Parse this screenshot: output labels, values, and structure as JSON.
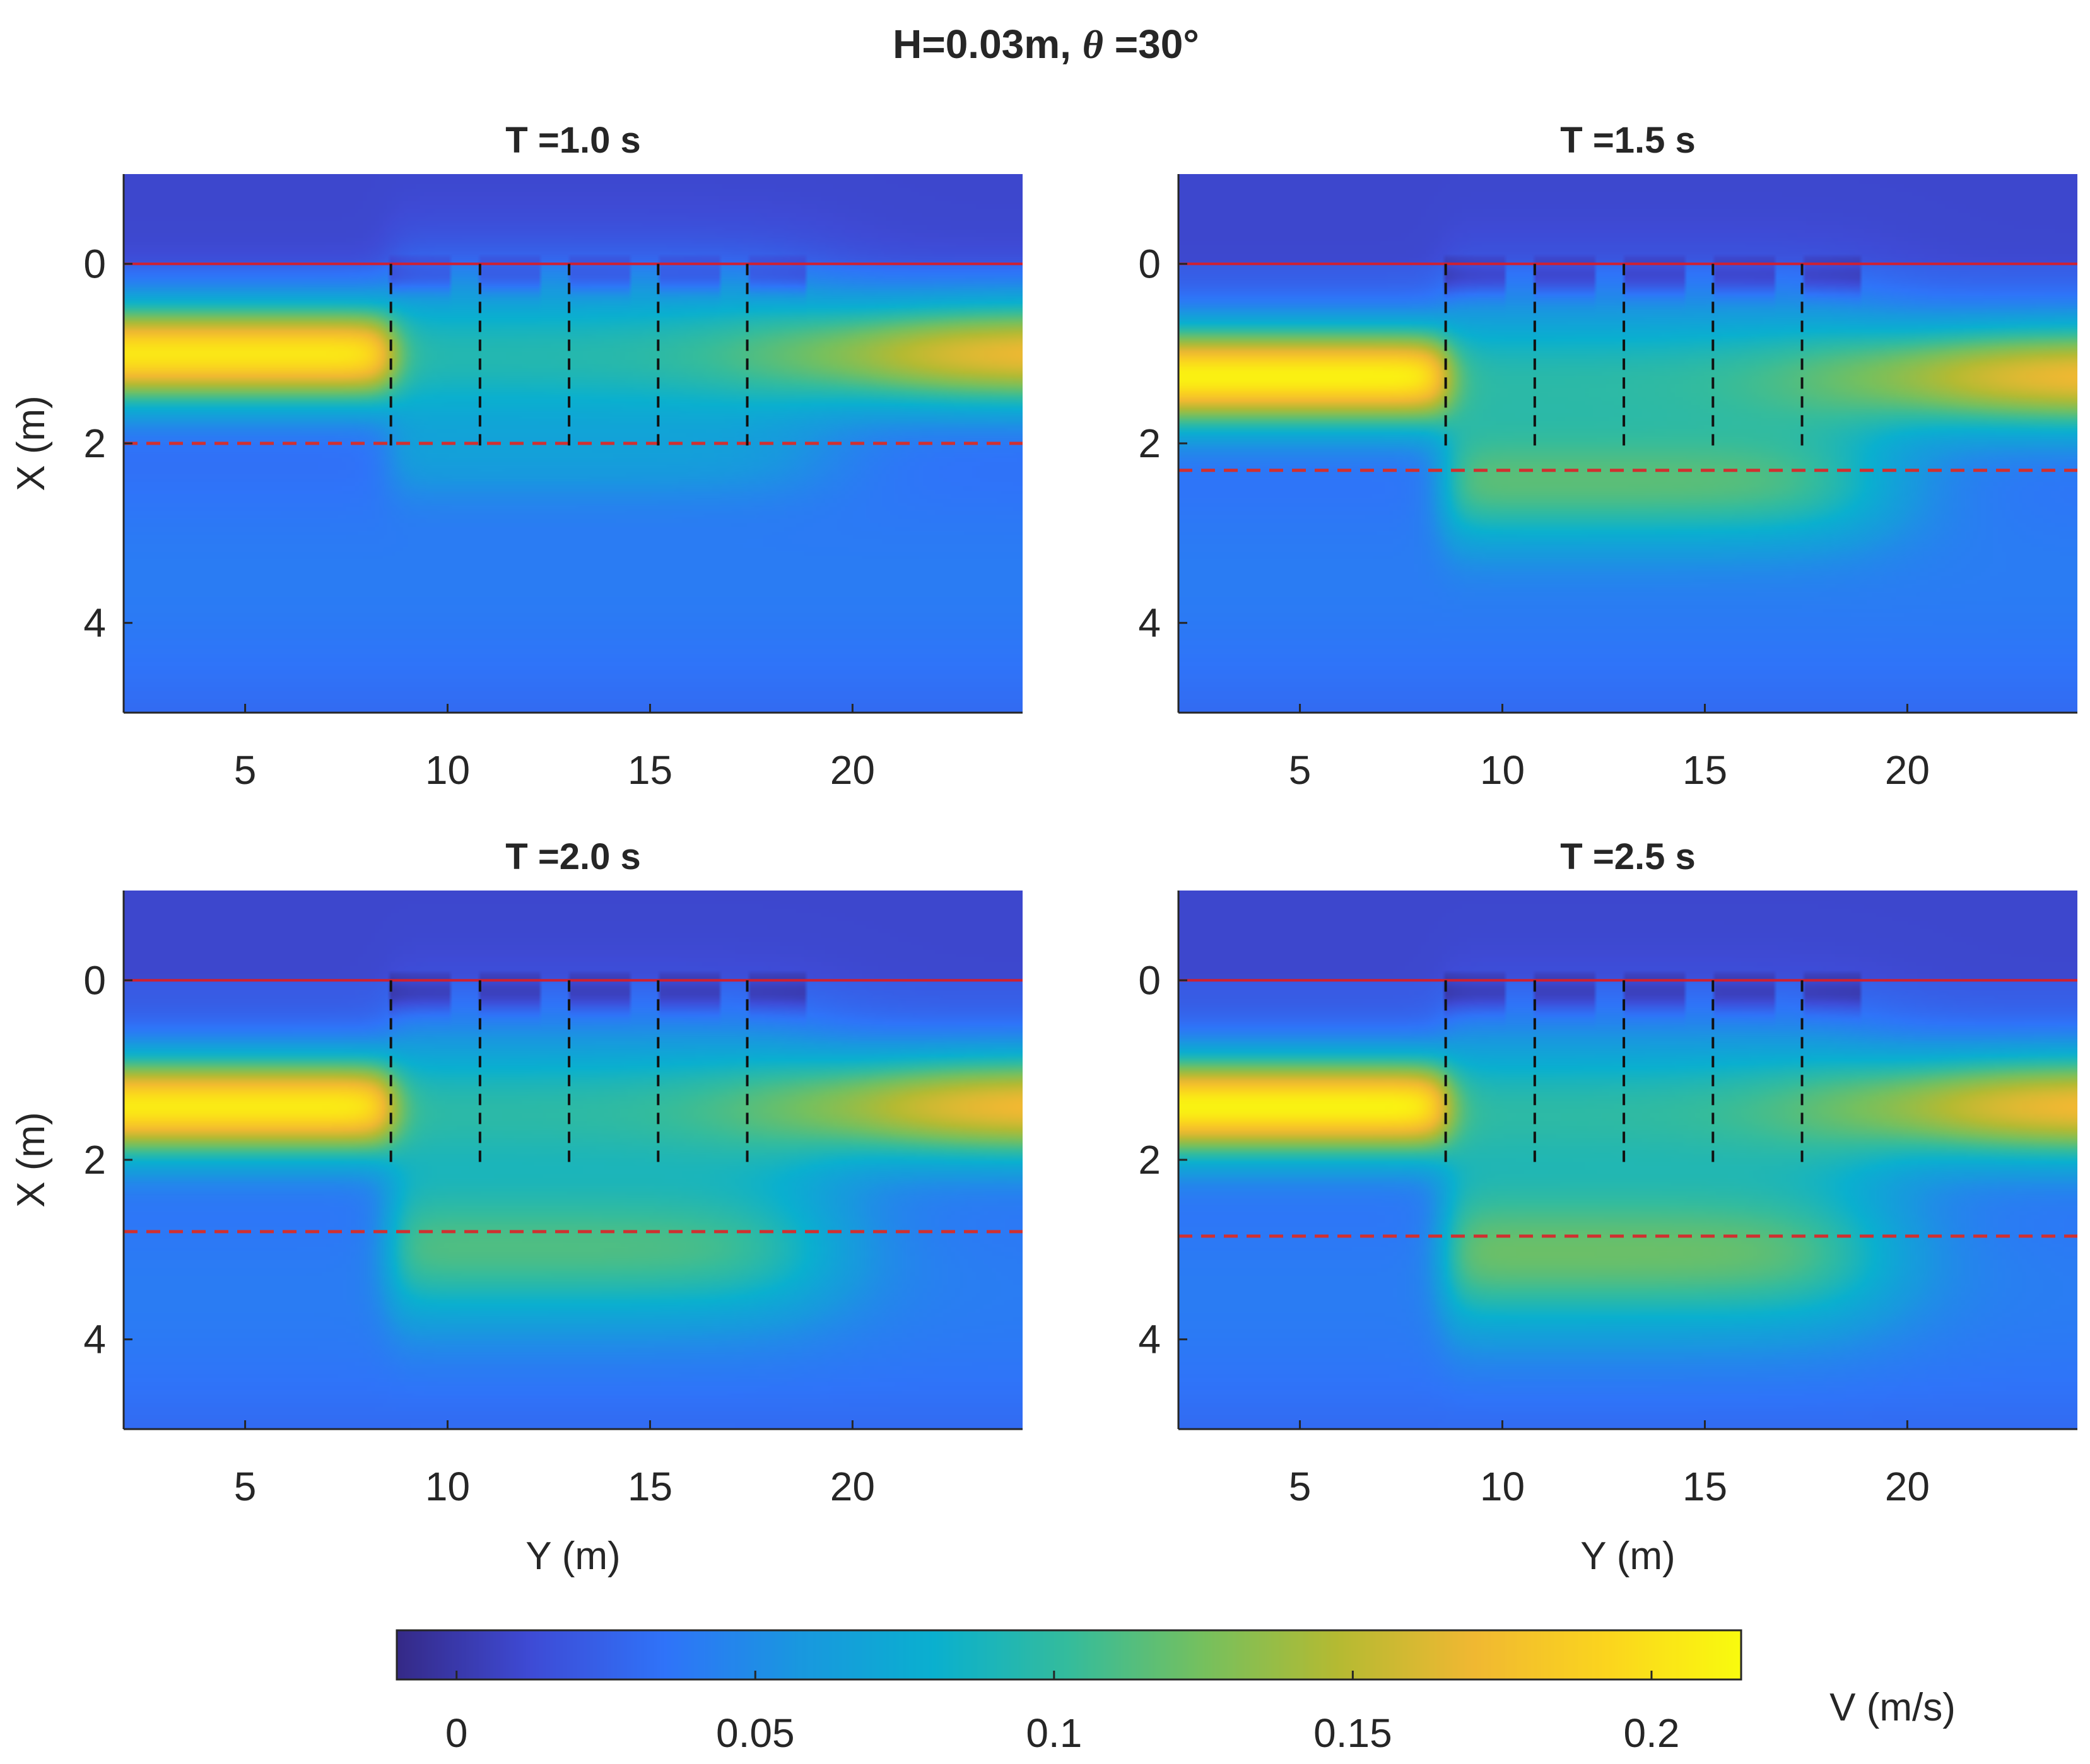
{
  "title_prefix": "H=0.03m, ",
  "title_symbol": "θ",
  "title_suffix": " =30°",
  "colors": {
    "parula": [
      "#352a87",
      "#3e4bd6",
      "#2f74f9",
      "#1998df",
      "#0ab0cf",
      "#35bc9c",
      "#76c05e",
      "#b5ba32",
      "#f0b832",
      "#fbd51e",
      "#f9fb0e"
    ],
    "boundary_solid": "#d02030",
    "boundary_dashed": "#d03030",
    "structure_line": "#111111"
  },
  "chart_data": {
    "type": "heatmap",
    "colorbar": {
      "label": "V (m/s)",
      "range": [
        -0.01,
        0.215
      ],
      "ticks": [
        0,
        0.05,
        0.1,
        0.15,
        0.2
      ],
      "tick_labels": [
        "0",
        "0.05",
        "0.1",
        "0.15",
        "0.2"
      ]
    },
    "panels": [
      {
        "title": "T =1.0 s",
        "xlabel": "",
        "ylabel": "X (m)",
        "xlim": [
          2,
          24.2
        ],
        "ylim": [
          -1,
          5
        ],
        "xticks": [
          5,
          10,
          15,
          20
        ],
        "yticks": [
          0,
          2,
          4
        ],
        "shore_line_x": 0,
        "dashed_line_x": 2.0,
        "structure_y": [
          8.6,
          10.8,
          13.0,
          15.2,
          17.4
        ],
        "structure_x_range": [
          0,
          2.1
        ],
        "jet": {
          "center_x": 1.0,
          "peak": 0.21,
          "right_peak": 0.19
        },
        "wake": {
          "spread": 0.12,
          "strength": 0.02
        }
      },
      {
        "title": "T =1.5 s",
        "xlabel": "",
        "ylabel": "",
        "xlim": [
          2,
          24.2
        ],
        "ylim": [
          -1,
          5
        ],
        "xticks": [
          5,
          10,
          15,
          20
        ],
        "yticks": [
          0,
          2,
          4
        ],
        "shore_line_x": 0,
        "dashed_line_x": 2.3,
        "structure_y": [
          8.6,
          10.8,
          13.0,
          15.2,
          17.4
        ],
        "structure_x_range": [
          0,
          2.1
        ],
        "jet": {
          "center_x": 1.25,
          "peak": 0.215,
          "right_peak": 0.19
        },
        "wake": {
          "spread": 0.3,
          "strength": 0.07
        }
      },
      {
        "title": "T =2.0 s",
        "xlabel": "Y (m)",
        "ylabel": "X (m)",
        "xlim": [
          2,
          24.2
        ],
        "ylim": [
          -1,
          5
        ],
        "xticks": [
          5,
          10,
          15,
          20
        ],
        "yticks": [
          0,
          2,
          4
        ],
        "shore_line_x": 0,
        "dashed_line_x": 2.8,
        "structure_y": [
          8.6,
          10.8,
          13.0,
          15.2,
          17.4
        ],
        "structure_x_range": [
          0,
          2.1
        ],
        "jet": {
          "center_x": 1.4,
          "peak": 0.21,
          "right_peak": 0.19
        },
        "wake": {
          "spread": 0.45,
          "strength": 0.07
        }
      },
      {
        "title": "T =2.5 s",
        "xlabel": "Y (m)",
        "ylabel": "",
        "xlim": [
          2,
          24.2
        ],
        "ylim": [
          -1,
          5
        ],
        "xticks": [
          5,
          10,
          15,
          20
        ],
        "yticks": [
          0,
          2,
          4
        ],
        "shore_line_x": 0,
        "dashed_line_x": 2.85,
        "structure_y": [
          8.6,
          10.8,
          13.0,
          15.2,
          17.4
        ],
        "structure_x_range": [
          0,
          2.1
        ],
        "jet": {
          "center_x": 1.4,
          "peak": 0.215,
          "right_peak": 0.19
        },
        "wake": {
          "spread": 0.5,
          "strength": 0.08
        }
      }
    ]
  }
}
